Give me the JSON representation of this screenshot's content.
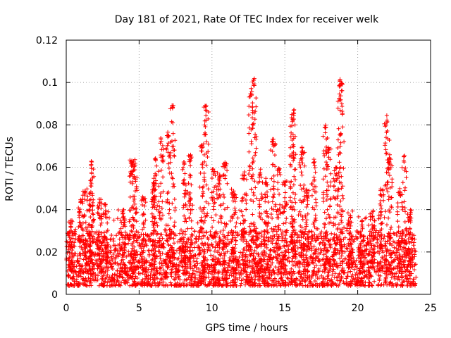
{
  "chart_data": {
    "type": "scatter",
    "title": "Day 181 of 2021, Rate Of TEC Index for receiver welk",
    "xlabel": "GPS time / hours",
    "ylabel": "ROTI / TECUs",
    "xlim": [
      0,
      25
    ],
    "ylim": [
      0,
      0.12
    ],
    "xticks": [
      0,
      5,
      10,
      15,
      20,
      25
    ],
    "xtick_labels": [
      "0",
      "5",
      "10",
      "15",
      "20",
      "25"
    ],
    "yticks": [
      0,
      0.02,
      0.04,
      0.06,
      0.08,
      0.1,
      0.12
    ],
    "ytick_labels": [
      "0",
      "0.02",
      "0.04",
      "0.06",
      "0.08",
      "0.1",
      "0.12"
    ],
    "grid": true,
    "marker": "+",
    "series": [
      {
        "name": "ROTI",
        "color": "#ff0000",
        "x_range": [
          0,
          24
        ],
        "baseline_range": [
          0.004,
          0.03
        ],
        "peaks": [
          {
            "x": 0.3,
            "y": 0.035
          },
          {
            "x": 1.0,
            "y": 0.047
          },
          {
            "x": 1.3,
            "y": 0.05
          },
          {
            "x": 1.7,
            "y": 0.054
          },
          {
            "x": 1.75,
            "y": 0.063
          },
          {
            "x": 2.3,
            "y": 0.045
          },
          {
            "x": 2.7,
            "y": 0.043
          },
          {
            "x": 3.9,
            "y": 0.04
          },
          {
            "x": 4.5,
            "y": 0.064
          },
          {
            "x": 4.7,
            "y": 0.064
          },
          {
            "x": 5.3,
            "y": 0.047
          },
          {
            "x": 6.0,
            "y": 0.055
          },
          {
            "x": 6.1,
            "y": 0.066
          },
          {
            "x": 6.5,
            "y": 0.075
          },
          {
            "x": 7.0,
            "y": 0.078
          },
          {
            "x": 7.3,
            "y": 0.09
          },
          {
            "x": 8.1,
            "y": 0.063
          },
          {
            "x": 8.5,
            "y": 0.066
          },
          {
            "x": 9.3,
            "y": 0.071
          },
          {
            "x": 9.6,
            "y": 0.09
          },
          {
            "x": 10.1,
            "y": 0.06
          },
          {
            "x": 10.5,
            "y": 0.058
          },
          {
            "x": 10.9,
            "y": 0.063
          },
          {
            "x": 11.5,
            "y": 0.05
          },
          {
            "x": 12.2,
            "y": 0.058
          },
          {
            "x": 12.7,
            "y": 0.098
          },
          {
            "x": 12.9,
            "y": 0.102
          },
          {
            "x": 13.3,
            "y": 0.06
          },
          {
            "x": 13.7,
            "y": 0.055
          },
          {
            "x": 14.2,
            "y": 0.074
          },
          {
            "x": 14.6,
            "y": 0.06
          },
          {
            "x": 15.0,
            "y": 0.055
          },
          {
            "x": 15.5,
            "y": 0.085
          },
          {
            "x": 15.6,
            "y": 0.088
          },
          {
            "x": 16.2,
            "y": 0.07
          },
          {
            "x": 16.5,
            "y": 0.05
          },
          {
            "x": 17.0,
            "y": 0.065
          },
          {
            "x": 17.8,
            "y": 0.08
          },
          {
            "x": 18.0,
            "y": 0.07
          },
          {
            "x": 18.5,
            "y": 0.06
          },
          {
            "x": 18.8,
            "y": 0.103
          },
          {
            "x": 18.9,
            "y": 0.1
          },
          {
            "x": 19.5,
            "y": 0.04
          },
          {
            "x": 20.3,
            "y": 0.035
          },
          {
            "x": 21.0,
            "y": 0.04
          },
          {
            "x": 21.6,
            "y": 0.05
          },
          {
            "x": 22.0,
            "y": 0.085
          },
          {
            "x": 22.2,
            "y": 0.066
          },
          {
            "x": 22.9,
            "y": 0.05
          },
          {
            "x": 23.2,
            "y": 0.066
          },
          {
            "x": 23.6,
            "y": 0.04
          }
        ]
      }
    ]
  }
}
